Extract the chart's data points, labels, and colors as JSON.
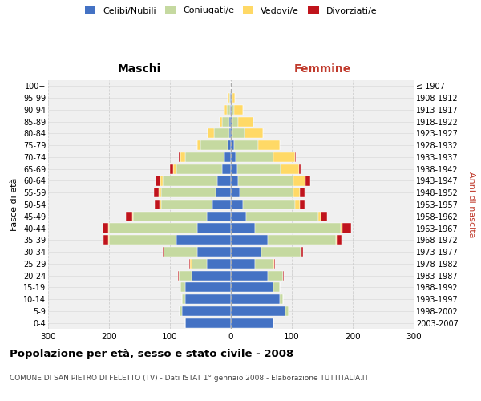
{
  "age_groups": [
    "0-4",
    "5-9",
    "10-14",
    "15-19",
    "20-24",
    "25-29",
    "30-34",
    "35-39",
    "40-44",
    "45-49",
    "50-54",
    "55-59",
    "60-64",
    "65-69",
    "70-74",
    "75-79",
    "80-84",
    "85-89",
    "90-94",
    "95-99",
    "100+"
  ],
  "birth_years": [
    "2003-2007",
    "1998-2002",
    "1993-1997",
    "1988-1992",
    "1983-1987",
    "1978-1982",
    "1973-1977",
    "1968-1972",
    "1963-1967",
    "1958-1962",
    "1953-1957",
    "1948-1952",
    "1943-1947",
    "1938-1942",
    "1933-1937",
    "1928-1932",
    "1923-1927",
    "1918-1922",
    "1913-1917",
    "1908-1912",
    "≤ 1907"
  ],
  "maschi": {
    "celibi": [
      75,
      80,
      75,
      75,
      65,
      40,
      55,
      90,
      55,
      40,
      30,
      25,
      22,
      15,
      10,
      5,
      3,
      2,
      1,
      1,
      0
    ],
    "coniugati": [
      0,
      4,
      5,
      8,
      20,
      25,
      55,
      110,
      145,
      120,
      85,
      90,
      90,
      75,
      65,
      45,
      25,
      12,
      5,
      2,
      0
    ],
    "vedovi": [
      0,
      0,
      0,
      0,
      1,
      2,
      0,
      1,
      1,
      2,
      2,
      3,
      4,
      5,
      8,
      5,
      10,
      5,
      5,
      2,
      0
    ],
    "divorziati": [
      0,
      0,
      0,
      0,
      1,
      1,
      2,
      8,
      10,
      10,
      8,
      8,
      8,
      5,
      2,
      0,
      0,
      0,
      0,
      0,
      0
    ]
  },
  "femmine": {
    "nubili": [
      70,
      90,
      80,
      70,
      60,
      40,
      50,
      60,
      40,
      25,
      20,
      15,
      12,
      10,
      8,
      5,
      3,
      2,
      1,
      1,
      0
    ],
    "coniugate": [
      0,
      5,
      5,
      10,
      25,
      30,
      65,
      112,
      140,
      118,
      85,
      88,
      90,
      72,
      62,
      40,
      20,
      10,
      4,
      1,
      0
    ],
    "vedove": [
      0,
      0,
      0,
      0,
      1,
      1,
      1,
      2,
      3,
      5,
      8,
      10,
      20,
      30,
      35,
      35,
      30,
      25,
      15,
      5,
      0
    ],
    "divorziate": [
      0,
      0,
      0,
      0,
      1,
      1,
      3,
      8,
      14,
      10,
      8,
      8,
      8,
      3,
      1,
      0,
      0,
      0,
      0,
      0,
      0
    ]
  },
  "colors": {
    "celibi": "#4472c4",
    "coniugati": "#c5d9a0",
    "vedovi": "#ffd966",
    "divorziati": "#c0141c"
  },
  "xlim": 300,
  "title": "Popolazione per età, sesso e stato civile - 2008",
  "subtitle": "COMUNE DI SAN PIETRO DI FELETTO (TV) - Dati ISTAT 1° gennaio 2008 - Elaborazione TUTTITALIA.IT",
  "ylabel_left": "Fasce di età",
  "ylabel_right": "Anni di nascita",
  "label_maschi": "Maschi",
  "label_femmine": "Femmine",
  "bg_color": "#ffffff",
  "plot_bg": "#f0f0f0",
  "grid_color": "#cccccc",
  "legend_labels": [
    "Celibi/Nubili",
    "Coniugati/e",
    "Vedovi/e",
    "Divorziati/e"
  ]
}
